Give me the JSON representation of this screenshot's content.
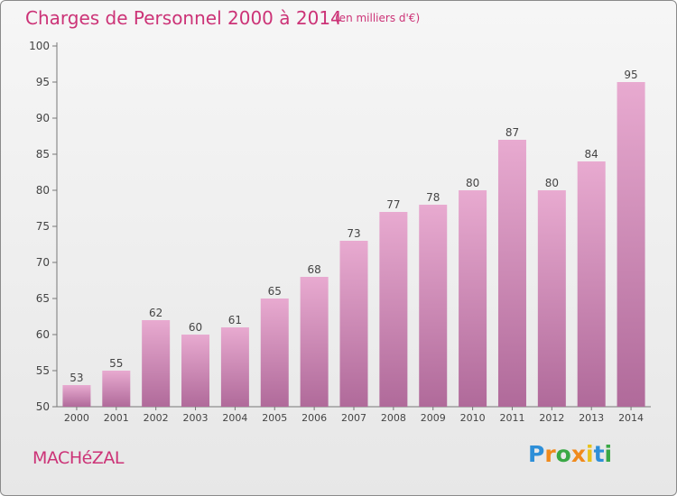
{
  "header": {
    "title": "Charges de Personnel 2000 à 2014",
    "subtitle": "(en milliers d'€)"
  },
  "footer": {
    "commune": "MACHéZAL",
    "logo_letters": [
      "P",
      "r",
      "o",
      "x",
      "i",
      "t",
      "i"
    ]
  },
  "colors": {
    "title": "#cc3377",
    "bar_top": "#e8aad0",
    "bar_bottom": "#b06a9a"
  },
  "chart_data": {
    "type": "bar",
    "categories": [
      "2000",
      "2001",
      "2002",
      "2003",
      "2004",
      "2005",
      "2006",
      "2007",
      "2008",
      "2009",
      "2010",
      "2011",
      "2012",
      "2013",
      "2014"
    ],
    "values": [
      53,
      55,
      62,
      60,
      61,
      65,
      68,
      73,
      77,
      78,
      80,
      87,
      80,
      84,
      95
    ],
    "ylim": [
      50,
      100
    ],
    "yticks": [
      50,
      55,
      60,
      65,
      70,
      75,
      80,
      85,
      90,
      95,
      100
    ],
    "grid": false,
    "data_labels": true
  }
}
